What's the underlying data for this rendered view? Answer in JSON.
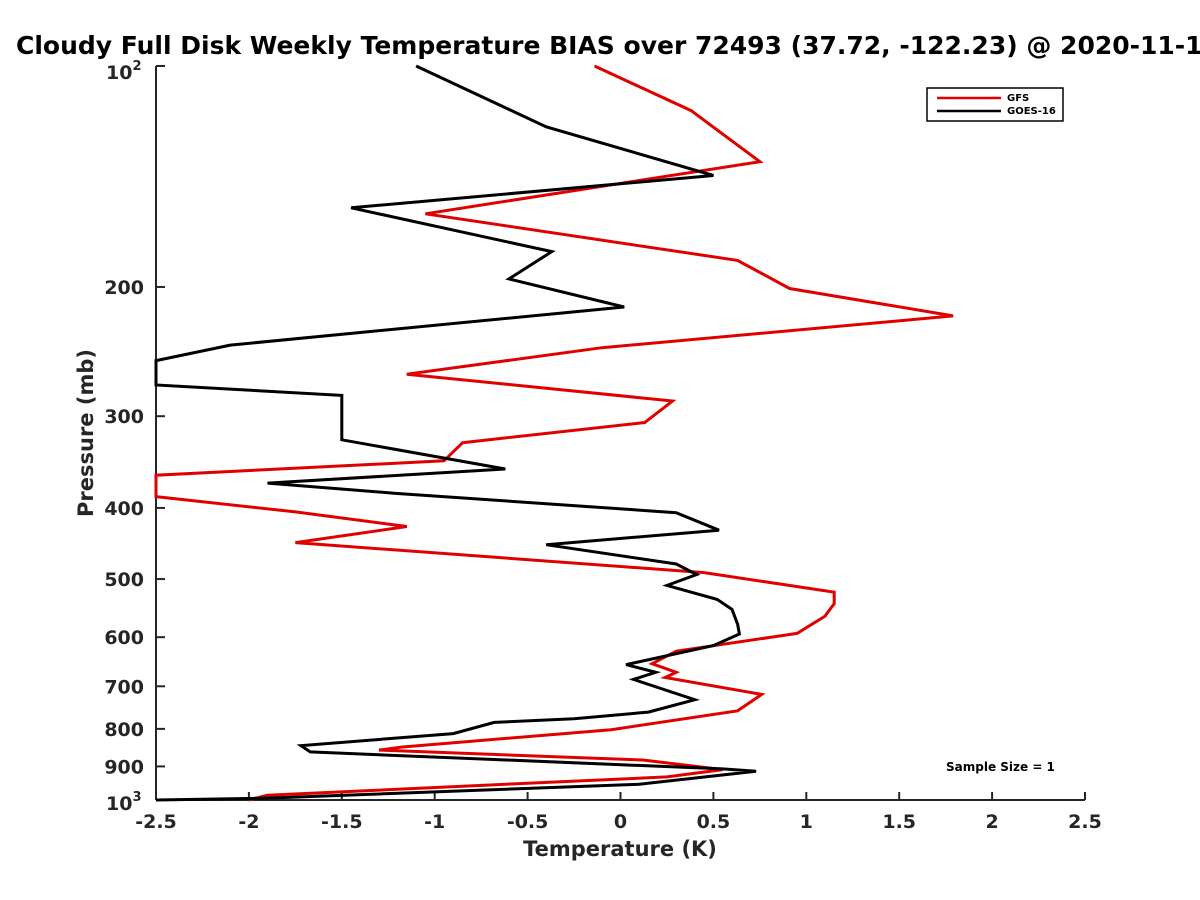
{
  "chart_data": {
    "type": "line",
    "title": "Cloudy Full Disk Weekly Temperature BIAS over 72493 (37.72, -122.23) @ 2020-11-1",
    "xlabel": "Temperature (K)",
    "ylabel": "Pressure (mb)",
    "xlim": [
      -2.5,
      2.5
    ],
    "ylim": [
      100,
      1000
    ],
    "y_scale": "log",
    "y_reversed": true,
    "grid": false,
    "legend_position": "top-right",
    "annotation": "Sample Size = 1",
    "x_ticks": [
      -2.5,
      -2,
      -1.5,
      -1,
      -0.5,
      0,
      0.5,
      1,
      1.5,
      2,
      2.5
    ],
    "x_tick_labels": [
      "-2.5",
      "-2",
      "-1.5",
      "-1",
      "-0.5",
      "0",
      "0.5",
      "1",
      "1.5",
      "2",
      "2.5"
    ],
    "y_ticks": [
      200,
      300,
      400,
      500,
      600,
      700,
      800,
      900
    ],
    "y_tick_labels": [
      "200",
      "300",
      "400",
      "500",
      "600",
      "700",
      "800",
      "900"
    ],
    "y_end_labels": {
      "top_base": "10",
      "top_exp": "2",
      "bottom_base": "10",
      "bottom_exp": "3"
    },
    "series": [
      {
        "name": "GFS",
        "color": "#e00000",
        "points": [
          [
            -0.14,
            100
          ],
          [
            0.38,
            115
          ],
          [
            0.75,
            135
          ],
          [
            -1.05,
            159
          ],
          [
            0.63,
            184
          ],
          [
            0.91,
            201
          ],
          [
            1.79,
            219
          ],
          [
            -0.1,
            242
          ],
          [
            -1.15,
            263
          ],
          [
            0.28,
            286
          ],
          [
            0.13,
            306
          ],
          [
            -0.85,
            326
          ],
          [
            -0.95,
            345
          ],
          [
            -2.5,
            361
          ],
          [
            -2.5,
            386
          ],
          [
            -1.75,
            405
          ],
          [
            -1.15,
            424
          ],
          [
            -1.75,
            446
          ],
          [
            0.45,
            490
          ],
          [
            1.15,
            521
          ],
          [
            1.15,
            540
          ],
          [
            1.1,
            562
          ],
          [
            0.95,
            593
          ],
          [
            0.3,
            627
          ],
          [
            0.17,
            652
          ],
          [
            0.3,
            670
          ],
          [
            0.24,
            681
          ],
          [
            0.76,
            718
          ],
          [
            0.63,
            756
          ],
          [
            -0.05,
            802
          ],
          [
            -1.18,
            847
          ],
          [
            -1.3,
            855
          ],
          [
            0.12,
            882
          ],
          [
            0.55,
            909
          ],
          [
            0.25,
            930
          ],
          [
            -1.9,
            985
          ],
          [
            -2.0,
            1000
          ]
        ]
      },
      {
        "name": "GOES-16",
        "color": "#000000",
        "points": [
          [
            -1.1,
            100
          ],
          [
            -0.4,
            121
          ],
          [
            0.5,
            141
          ],
          [
            -1.45,
            156
          ],
          [
            -0.37,
            179
          ],
          [
            -0.6,
            195
          ],
          [
            0.02,
            213
          ],
          [
            -2.1,
            240
          ],
          [
            -2.5,
            252
          ],
          [
            -2.5,
            272
          ],
          [
            -1.5,
            281
          ],
          [
            -1.5,
            323
          ],
          [
            -0.62,
            354
          ],
          [
            -1.9,
            370
          ],
          [
            -1.22,
            382
          ],
          [
            0.3,
            406
          ],
          [
            0.53,
            429
          ],
          [
            -0.4,
            449
          ],
          [
            0.3,
            477
          ],
          [
            0.41,
            493
          ],
          [
            0.25,
            510
          ],
          [
            0.52,
            533
          ],
          [
            0.6,
            550
          ],
          [
            0.63,
            576
          ],
          [
            0.64,
            594
          ],
          [
            0.5,
            616
          ],
          [
            0.03,
            654
          ],
          [
            0.19,
            670
          ],
          [
            0.07,
            685
          ],
          [
            0.4,
            730
          ],
          [
            0.15,
            759
          ],
          [
            -0.25,
            775
          ],
          [
            -0.68,
            784
          ],
          [
            -0.9,
            812
          ],
          [
            -1.72,
            843
          ],
          [
            -1.67,
            860
          ],
          [
            0.55,
            907
          ],
          [
            0.73,
            914
          ],
          [
            0.1,
            952
          ],
          [
            -1.9,
            994
          ],
          [
            -2.5,
            1000
          ]
        ]
      }
    ]
  }
}
